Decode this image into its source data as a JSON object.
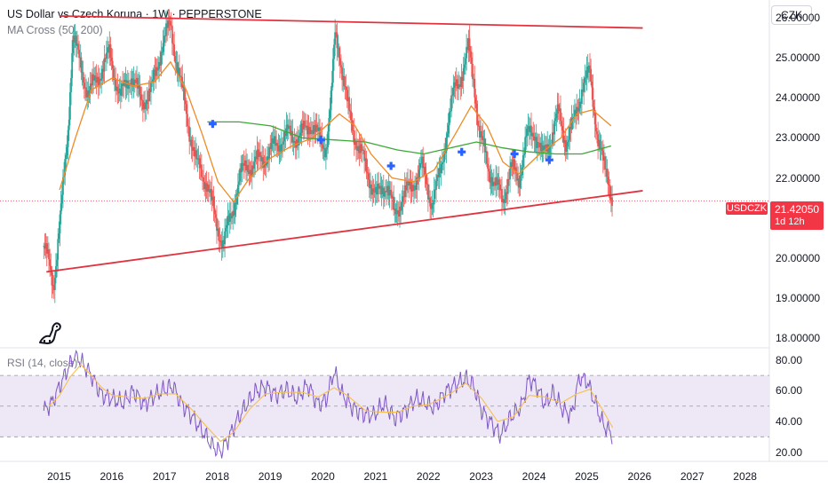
{
  "header": {
    "title": "US Dollar vs Czech Koruna · 1W · PEPPERSTONE",
    "indicator": "MA Cross (50, 200)",
    "currency": "CZK",
    "rsi_title": "RSI (14, close)"
  },
  "badges": {
    "symbol": "USDCZK",
    "price": "21.42050",
    "countdown": "1d 12h"
  },
  "colors": {
    "trendline": "#e0333f",
    "ma_fast": "#f08a24",
    "ma_slow": "#3ba935",
    "cross": "#2962ff",
    "rsi_line": "#7e57c2",
    "rsi_ma": "#f5c04e",
    "rsi_band": "#ede7f6",
    "candle_up": "#26a69a",
    "candle_down": "#ef5350"
  },
  "chart_data": [
    {
      "type": "candlestick",
      "title": "US Dollar vs Czech Koruna · 1W · PEPPERSTONE",
      "x_range": [
        2013.87,
        2028.45
      ],
      "ylim": [
        17.75,
        26.45
      ],
      "y_ticks": [
        18.0,
        19.0,
        20.0,
        21.0,
        22.0,
        23.0,
        24.0,
        25.0,
        26.0
      ],
      "y_tick_labels": [
        "18.00000",
        "19.00000",
        "20.00000",
        "21.00000",
        "22.00000",
        "23.00000",
        "24.00000",
        "25.00000",
        "26.00000"
      ],
      "x_ticks": [
        2015,
        2016,
        2017,
        2018,
        2019,
        2020,
        2021,
        2022,
        2023,
        2024,
        2025,
        2026,
        2027,
        2028
      ],
      "x_tick_labels": [
        "2015",
        "2016",
        "2017",
        "2018",
        "2019",
        "2020",
        "2021",
        "2022",
        "2023",
        "2024",
        "2025",
        "2026",
        "2027",
        "2028"
      ],
      "price_path": [
        [
          2014.7,
          20.3
        ],
        [
          2014.8,
          19.8
        ],
        [
          2014.88,
          19.3
        ],
        [
          2014.95,
          20.2
        ],
        [
          2015.05,
          21.5
        ],
        [
          2015.15,
          23.0
        ],
        [
          2015.25,
          25.6
        ],
        [
          2015.35,
          25.0
        ],
        [
          2015.55,
          24.1
        ],
        [
          2015.75,
          24.6
        ],
        [
          2015.95,
          25.1
        ],
        [
          2016.15,
          24.0
        ],
        [
          2016.35,
          24.6
        ],
        [
          2016.55,
          23.9
        ],
        [
          2016.75,
          24.2
        ],
        [
          2016.95,
          25.4
        ],
        [
          2017.1,
          25.8
        ],
        [
          2017.25,
          24.7
        ],
        [
          2017.4,
          23.6
        ],
        [
          2017.6,
          22.3
        ],
        [
          2017.8,
          21.9
        ],
        [
          2017.95,
          20.9
        ],
        [
          2018.1,
          20.4
        ],
        [
          2018.25,
          21.0
        ],
        [
          2018.4,
          22.0
        ],
        [
          2018.55,
          22.3
        ],
        [
          2018.75,
          22.4
        ],
        [
          2018.95,
          22.6
        ],
        [
          2019.15,
          22.9
        ],
        [
          2019.35,
          23.1
        ],
        [
          2019.55,
          23.0
        ],
        [
          2019.75,
          23.4
        ],
        [
          2019.9,
          23.0
        ],
        [
          2020.05,
          22.8
        ],
        [
          2020.15,
          24.0
        ],
        [
          2020.22,
          25.6
        ],
        [
          2020.3,
          25.2
        ],
        [
          2020.45,
          23.8
        ],
        [
          2020.65,
          22.8
        ],
        [
          2020.85,
          22.1
        ],
        [
          2021.0,
          21.5
        ],
        [
          2021.2,
          21.9
        ],
        [
          2021.35,
          21.0
        ],
        [
          2021.5,
          21.6
        ],
        [
          2021.65,
          21.7
        ],
        [
          2021.85,
          22.3
        ],
        [
          2022.05,
          21.4
        ],
        [
          2022.2,
          22.0
        ],
        [
          2022.35,
          23.3
        ],
        [
          2022.5,
          24.3
        ],
        [
          2022.65,
          24.7
        ],
        [
          2022.75,
          25.2
        ],
        [
          2022.85,
          24.5
        ],
        [
          2022.95,
          23.1
        ],
        [
          2023.1,
          22.4
        ],
        [
          2023.25,
          21.8
        ],
        [
          2023.4,
          21.5
        ],
        [
          2023.55,
          22.2
        ],
        [
          2023.7,
          22.0
        ],
        [
          2023.85,
          23.0
        ],
        [
          2024.0,
          23.2
        ],
        [
          2024.15,
          22.5
        ],
        [
          2024.3,
          23.0
        ],
        [
          2024.45,
          23.6
        ],
        [
          2024.6,
          22.9
        ],
        [
          2024.75,
          23.4
        ],
        [
          2024.9,
          24.3
        ],
        [
          2025.05,
          24.6
        ],
        [
          2025.2,
          23.0
        ],
        [
          2025.3,
          22.3
        ],
        [
          2025.4,
          22.0
        ],
        [
          2025.48,
          21.42
        ]
      ],
      "ma_50": [
        [
          2015.0,
          21.7
        ],
        [
          2015.3,
          23.0
        ],
        [
          2015.6,
          24.2
        ],
        [
          2016.0,
          24.5
        ],
        [
          2016.4,
          24.3
        ],
        [
          2016.8,
          24.4
        ],
        [
          2017.1,
          24.9
        ],
        [
          2017.4,
          24.2
        ],
        [
          2017.7,
          23.1
        ],
        [
          2018.0,
          21.9
        ],
        [
          2018.3,
          21.4
        ],
        [
          2018.6,
          22.0
        ],
        [
          2019.0,
          22.5
        ],
        [
          2019.4,
          22.8
        ],
        [
          2019.8,
          23.0
        ],
        [
          2020.3,
          23.6
        ],
        [
          2020.6,
          23.3
        ],
        [
          2020.9,
          22.6
        ],
        [
          2021.3,
          22.0
        ],
        [
          2021.7,
          21.9
        ],
        [
          2022.1,
          22.2
        ],
        [
          2022.5,
          23.1
        ],
        [
          2022.8,
          23.8
        ],
        [
          2023.1,
          23.3
        ],
        [
          2023.4,
          22.4
        ],
        [
          2023.7,
          22.1
        ],
        [
          2024.1,
          22.6
        ],
        [
          2024.5,
          23.0
        ],
        [
          2024.8,
          23.6
        ],
        [
          2025.1,
          23.7
        ],
        [
          2025.45,
          23.3
        ]
      ],
      "ma_200": [
        [
          2017.8,
          23.4
        ],
        [
          2018.4,
          23.4
        ],
        [
          2019.0,
          23.3
        ],
        [
          2019.6,
          23.0
        ],
        [
          2020.2,
          22.95
        ],
        [
          2020.8,
          22.9
        ],
        [
          2021.4,
          22.7
        ],
        [
          2021.9,
          22.6
        ],
        [
          2022.4,
          22.75
        ],
        [
          2022.9,
          22.9
        ],
        [
          2023.4,
          22.75
        ],
        [
          2023.9,
          22.65
        ],
        [
          2024.4,
          22.6
        ],
        [
          2024.9,
          22.6
        ],
        [
          2025.45,
          22.8
        ]
      ],
      "crosses": [
        [
          2017.9,
          23.35
        ],
        [
          2019.95,
          22.95
        ],
        [
          2021.28,
          22.3
        ],
        [
          2022.62,
          22.65
        ],
        [
          2023.62,
          22.6
        ],
        [
          2024.28,
          22.45
        ]
      ],
      "trendlines": [
        {
          "name": "upper",
          "from": [
            2015.0,
            26.05
          ],
          "to": [
            2026.05,
            25.75
          ]
        },
        {
          "name": "lower",
          "from": [
            2014.75,
            19.65
          ],
          "to": [
            2026.05,
            21.68
          ]
        }
      ],
      "last_price": 21.4205
    },
    {
      "type": "line",
      "title": "RSI (14, close)",
      "ylim": [
        14,
        88
      ],
      "y_ticks": [
        20.0,
        40.0,
        60.0,
        80.0
      ],
      "y_tick_labels": [
        "20.00",
        "40.00",
        "60.00",
        "80.00"
      ],
      "bands": [
        30,
        50,
        70
      ],
      "series": [
        {
          "values": [
            [
              2014.7,
              47
            ],
            [
              2014.85,
              52
            ],
            [
              2015.0,
              63
            ],
            [
              2015.15,
              74
            ],
            [
              2015.3,
              84
            ],
            [
              2015.45,
              77
            ],
            [
              2015.6,
              70
            ],
            [
              2015.8,
              57
            ],
            [
              2016.0,
              55
            ],
            [
              2016.2,
              52
            ],
            [
              2016.4,
              60
            ],
            [
              2016.6,
              51
            ],
            [
              2016.8,
              57
            ],
            [
              2017.0,
              61
            ],
            [
              2017.15,
              63
            ],
            [
              2017.3,
              52
            ],
            [
              2017.5,
              44
            ],
            [
              2017.7,
              34
            ],
            [
              2017.9,
              24
            ],
            [
              2018.05,
              20
            ],
            [
              2018.2,
              29
            ],
            [
              2018.35,
              40
            ],
            [
              2018.5,
              49
            ],
            [
              2018.7,
              59
            ],
            [
              2018.9,
              63
            ],
            [
              2019.1,
              57
            ],
            [
              2019.3,
              61
            ],
            [
              2019.5,
              55
            ],
            [
              2019.7,
              64
            ],
            [
              2019.9,
              51
            ],
            [
              2020.05,
              54
            ],
            [
              2020.2,
              73
            ],
            [
              2020.35,
              58
            ],
            [
              2020.55,
              49
            ],
            [
              2020.75,
              45
            ],
            [
              2020.95,
              44
            ],
            [
              2021.15,
              52
            ],
            [
              2021.35,
              42
            ],
            [
              2021.55,
              47
            ],
            [
              2021.75,
              55
            ],
            [
              2021.95,
              52
            ],
            [
              2022.1,
              49
            ],
            [
              2022.3,
              59
            ],
            [
              2022.5,
              64
            ],
            [
              2022.7,
              68
            ],
            [
              2022.85,
              63
            ],
            [
              2023.0,
              47
            ],
            [
              2023.2,
              38
            ],
            [
              2023.35,
              31
            ],
            [
              2023.55,
              43
            ],
            [
              2023.75,
              50
            ],
            [
              2023.9,
              68
            ],
            [
              2024.05,
              62
            ],
            [
              2024.2,
              51
            ],
            [
              2024.35,
              59
            ],
            [
              2024.55,
              47
            ],
            [
              2024.7,
              44
            ],
            [
              2024.85,
              69
            ],
            [
              2025.0,
              66
            ],
            [
              2025.15,
              52
            ],
            [
              2025.3,
              38
            ],
            [
              2025.48,
              31
            ]
          ]
        },
        {
          "values": [
            [
              2014.8,
              50
            ],
            [
              2015.0,
              57
            ],
            [
              2015.2,
              69
            ],
            [
              2015.4,
              77
            ],
            [
              2015.6,
              70
            ],
            [
              2015.8,
              62
            ],
            [
              2016.0,
              57
            ],
            [
              2016.3,
              56
            ],
            [
              2016.6,
              55
            ],
            [
              2016.9,
              58
            ],
            [
              2017.2,
              58
            ],
            [
              2017.5,
              48
            ],
            [
              2017.8,
              36
            ],
            [
              2018.05,
              27
            ],
            [
              2018.3,
              33
            ],
            [
              2018.6,
              48
            ],
            [
              2018.9,
              58
            ],
            [
              2019.2,
              59
            ],
            [
              2019.6,
              59
            ],
            [
              2019.9,
              56
            ],
            [
              2020.2,
              62
            ],
            [
              2020.45,
              57
            ],
            [
              2020.8,
              47
            ],
            [
              2021.1,
              46
            ],
            [
              2021.4,
              46
            ],
            [
              2021.7,
              50
            ],
            [
              2022.0,
              51
            ],
            [
              2022.4,
              58
            ],
            [
              2022.7,
              65
            ],
            [
              2023.0,
              55
            ],
            [
              2023.3,
              40
            ],
            [
              2023.6,
              43
            ],
            [
              2023.9,
              57
            ],
            [
              2024.2,
              56
            ],
            [
              2024.5,
              52
            ],
            [
              2024.8,
              58
            ],
            [
              2025.05,
              61
            ],
            [
              2025.3,
              47
            ],
            [
              2025.48,
              36
            ]
          ]
        }
      ]
    }
  ]
}
